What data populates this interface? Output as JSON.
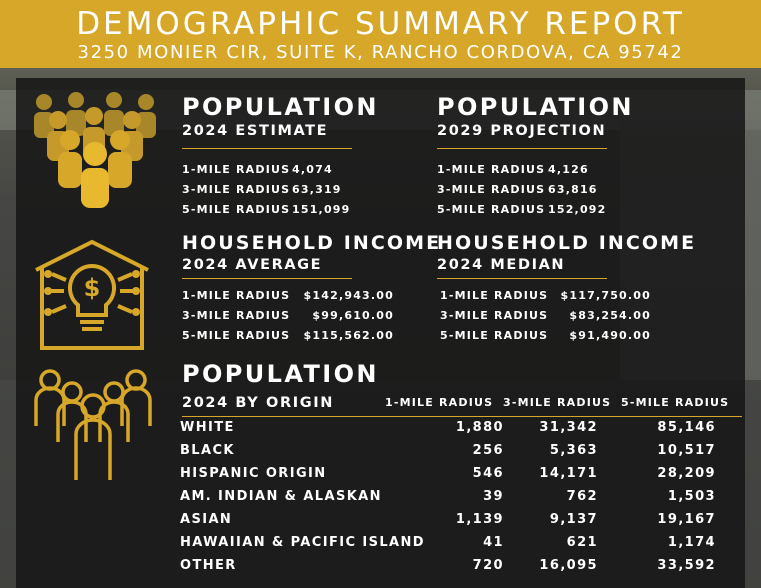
{
  "header": {
    "title": "DEMOGRAPHIC SUMMARY REPORT",
    "address": "3250 MONIER CIR, SUITE K, RANCHO CORDOVA, CA 95742"
  },
  "colors": {
    "gold": "#d7a72a",
    "panel": "#161616",
    "text": "#ffffff"
  },
  "population_2024": {
    "title": "POPULATION",
    "subtitle": "2024 ESTIMATE",
    "rows": [
      {
        "label": "1-MILE RADIUS",
        "value": "4,074"
      },
      {
        "label": "3-MILE RADIUS",
        "value": "63,319"
      },
      {
        "label": "5-MILE RADIUS",
        "value": "151,099"
      }
    ]
  },
  "population_2029": {
    "title": "POPULATION",
    "subtitle": "2029 PROJECTION",
    "rows": [
      {
        "label": "1-MILE RADIUS",
        "value": "4,126"
      },
      {
        "label": "3-MILE RADIUS",
        "value": "63,816"
      },
      {
        "label": "5-MILE RADIUS",
        "value": "152,092"
      }
    ]
  },
  "income_average": {
    "title": "HOUSEHOLD INCOME",
    "subtitle": "2024 AVERAGE",
    "rows": [
      {
        "label": "1-MILE RADIUS",
        "value": "$142,943.00"
      },
      {
        "label": "3-MILE RADIUS",
        "value": "$99,610.00"
      },
      {
        "label": "5-MILE RADIUS",
        "value": "$115,562.00"
      }
    ]
  },
  "income_median": {
    "title": "HOUSEHOLD INCOME",
    "subtitle": "2024 MEDIAN",
    "rows": [
      {
        "label": "1-MILE RADIUS",
        "value": "$117,750.00"
      },
      {
        "label": "3-MILE RADIUS",
        "value": "$83,254.00"
      },
      {
        "label": "5-MILE RADIUS",
        "value": "$91,490.00"
      }
    ]
  },
  "origin": {
    "title": "POPULATION",
    "subtitle": "2024 BY ORIGIN",
    "columns": [
      "1-MILE RADIUS",
      "3-MILE RADIUS",
      "5-MILE RADIUS"
    ],
    "rows": [
      {
        "label": "WHITE",
        "v1": "1,880",
        "v2": "31,342",
        "v3": "85,146"
      },
      {
        "label": "BLACK",
        "v1": "256",
        "v2": "5,363",
        "v3": "10,517"
      },
      {
        "label": "HISPANIC ORIGIN",
        "v1": "546",
        "v2": "14,171",
        "v3": "28,209"
      },
      {
        "label": "AM. INDIAN & ALASKAN",
        "v1": "39",
        "v2": "762",
        "v3": "1,503"
      },
      {
        "label": "ASIAN",
        "v1": "1,139",
        "v2": "9,137",
        "v3": "19,167"
      },
      {
        "label": "HAWAIIAN & PACIFIC ISLAND",
        "v1": "41",
        "v2": "621",
        "v3": "1,174"
      },
      {
        "label": "OTHER",
        "v1": "720",
        "v2": "16,095",
        "v3": "33,592"
      }
    ]
  },
  "icons": [
    "crowd-icon",
    "house-lightbulb-dollar-icon",
    "people-group-outline-icon"
  ]
}
